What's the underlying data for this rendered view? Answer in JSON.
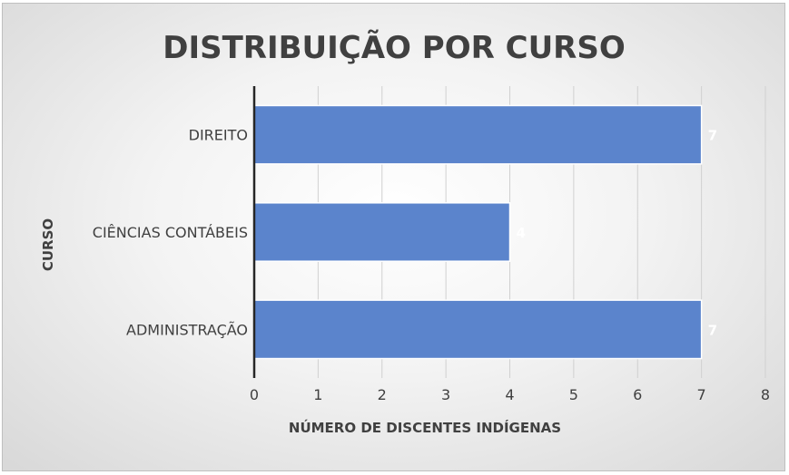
{
  "chart_data": {
    "type": "bar",
    "orientation": "horizontal",
    "title": "DISTRIBUIÇÃO POR CURSO",
    "xlabel": "NÚMERO DE DISCENTES INDÍGENAS",
    "ylabel": "CURSO",
    "categories": [
      "DIREITO",
      "CIÊNCIAS CONTÁBEIS",
      "ADMINISTRAÇÃO"
    ],
    "values": [
      7,
      4,
      7
    ],
    "xlim": [
      0,
      8
    ],
    "xticks": [
      "0",
      "1",
      "2",
      "3",
      "4",
      "5",
      "6",
      "7",
      "8"
    ],
    "grid": "vertical",
    "data_labels": true,
    "bar_color": "#5b84cc",
    "label_color": "#ffffff",
    "text_color": "#404040"
  }
}
